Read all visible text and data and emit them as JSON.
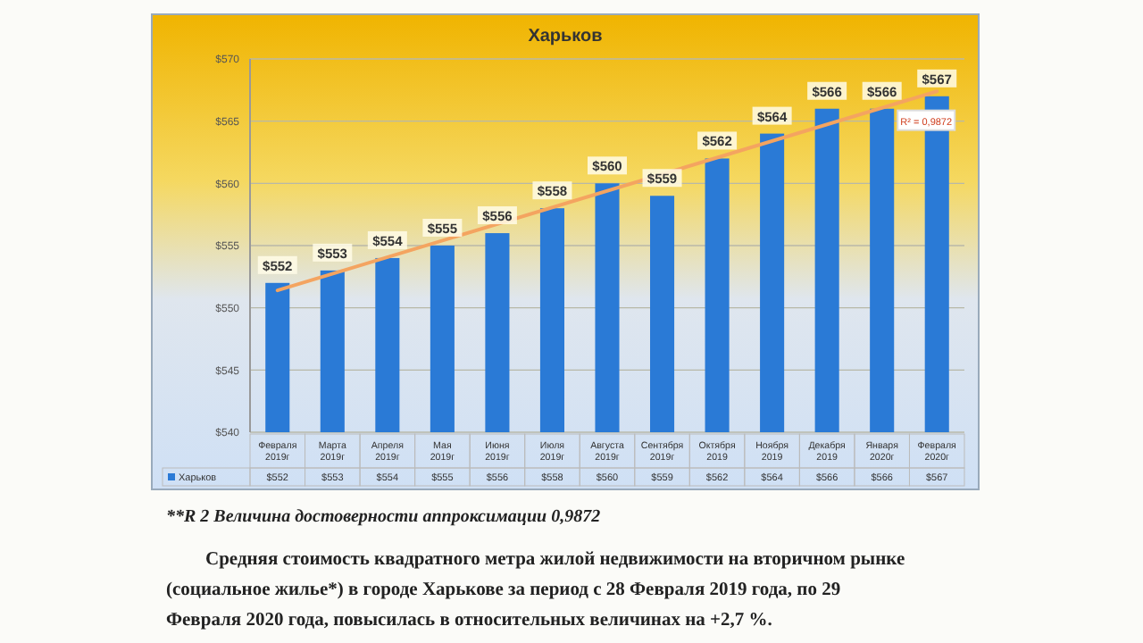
{
  "chart_data": {
    "type": "bar",
    "title": "Харьков",
    "categories": [
      "Февраля 2019г",
      "Марта 2019г",
      "Апреля 2019г",
      "Мая 2019г",
      "Июня 2019г",
      "Июля 2019г",
      "Августа 2019г",
      "Сентября 2019г",
      "Октября 2019",
      "Ноября 2019",
      "Декабря 2019",
      "Января 2020г",
      "Февраля 2020г"
    ],
    "series": [
      {
        "name": "Харьков",
        "color": "#2a7ad6",
        "values": [
          552,
          553,
          554,
          555,
          556,
          558,
          560,
          559,
          562,
          564,
          566,
          566,
          567
        ],
        "value_labels": [
          "$552",
          "$553",
          "$554",
          "$555",
          "$556",
          "$558",
          "$560",
          "$559",
          "$562",
          "$564",
          "$566",
          "$566",
          "$567"
        ]
      },
      {
        "type": "line",
        "color": "#f4a460",
        "x": [
          "Февраля 2019г",
          "Февраля 2020г"
        ],
        "values": [
          551.4,
          567.4
        ]
      }
    ],
    "ylim": [
      540,
      570
    ],
    "yticks": [
      {
        "value": 540,
        "label": "$540"
      },
      {
        "value": 545,
        "label": "$545"
      },
      {
        "value": 550,
        "label": "$550"
      },
      {
        "value": 555,
        "label": "$555"
      },
      {
        "value": 560,
        "label": "$560"
      },
      {
        "value": 565,
        "label": "$565"
      },
      {
        "value": 570,
        "label": "$570"
      }
    ],
    "grid": "y",
    "legend": "bottom",
    "annotations": [
      "R² = 0,9872",
      "**R 2 Величина достоверности аппроксимации 0,9872",
      "Средняя стоимость квадратного метра жилой недвижимости на вторичном рынке (социальное жилье*) в городе Харькове за период с 28 Февраля 2019 года, по 29 Февраля 2020 года, повысилась в относительных величинах на +2,7 %."
    ]
  }
}
